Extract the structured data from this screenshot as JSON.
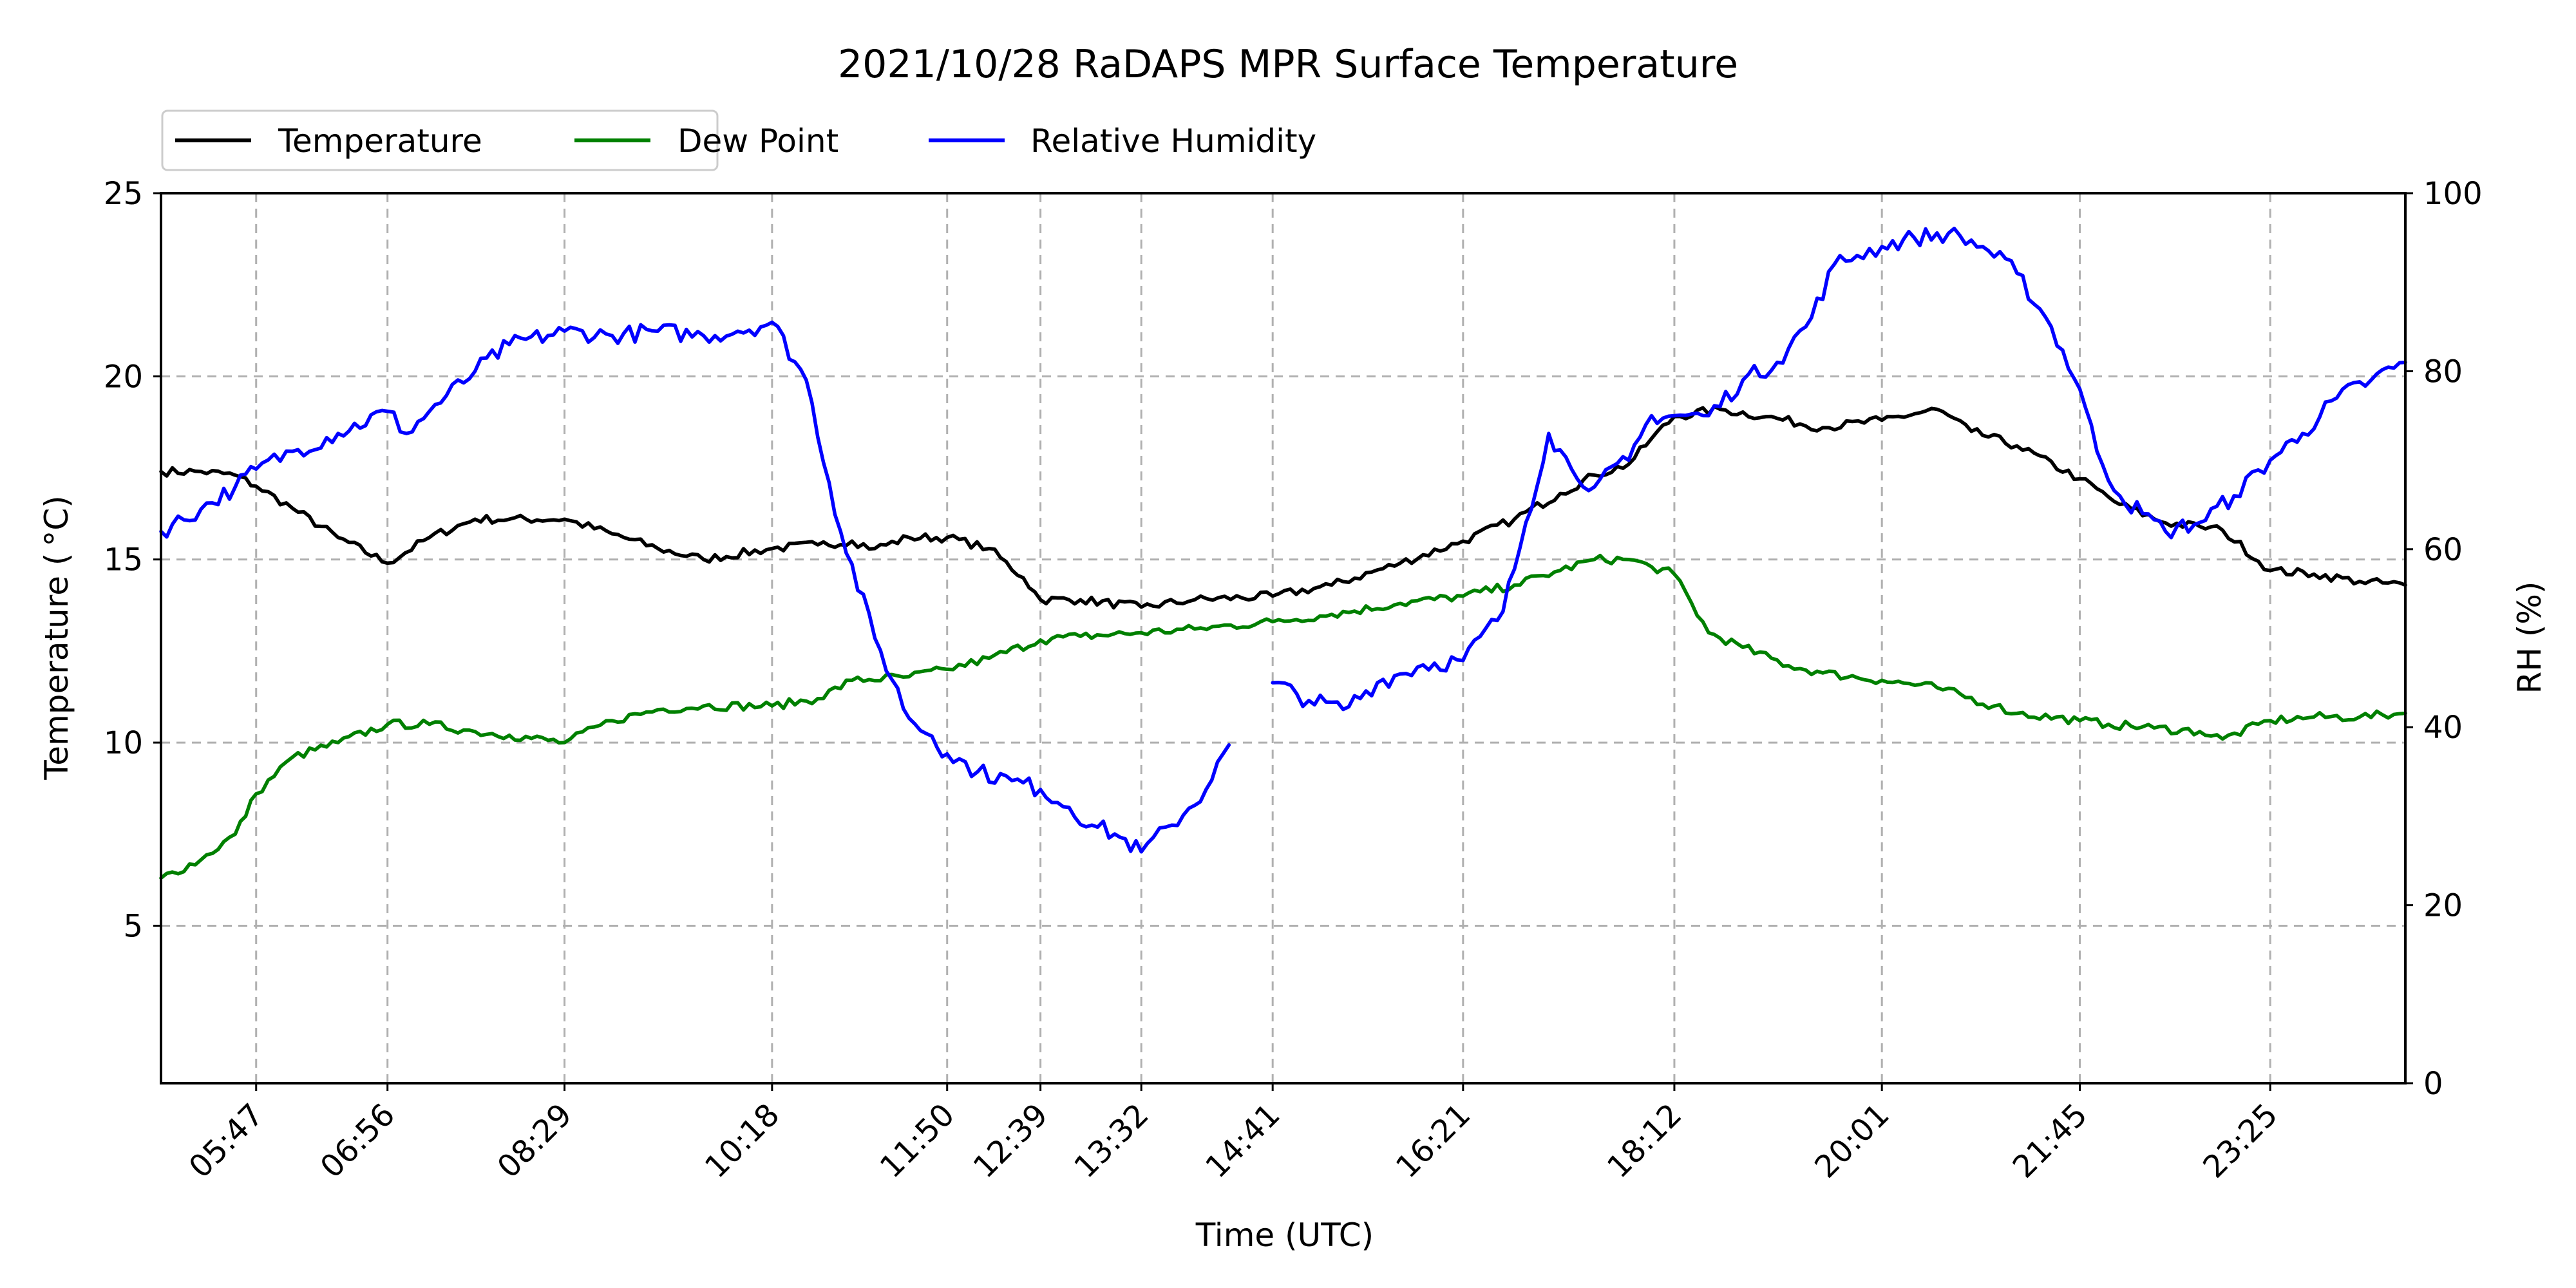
{
  "chart_data": {
    "type": "line",
    "title": "2021/10/28 RaDAPS MPR Surface Temperature",
    "xlabel": "Time (UTC)",
    "ylabel_left": "Temperature ($^\\circ$C)",
    "ylabel_left_display": "Temperature ( °C)",
    "ylabel_right": "RH (%)",
    "x_ticks": [
      "05:47",
      "06:56",
      "08:29",
      "10:18",
      "11:50",
      "12:39",
      "13:32",
      "14:41",
      "16:21",
      "18:12",
      "20:01",
      "21:45",
      "23:25"
    ],
    "x_tick_hours": [
      5.783,
      6.933,
      8.483,
      10.3,
      11.833,
      12.65,
      13.533,
      14.683,
      16.35,
      18.2,
      20.017,
      21.75,
      23.417
    ],
    "xlim_hours": [
      4.95,
      24.6
    ],
    "ylim_left": [
      0.7,
      25
    ],
    "y_ticks_left": [
      5,
      10,
      15,
      20,
      25
    ],
    "ylim_right": [
      0,
      100
    ],
    "y_ticks_right": [
      0,
      20,
      40,
      60,
      80,
      100
    ],
    "grid": true,
    "legend_position": "top-left, above axes",
    "series": [
      {
        "name": "Temperature",
        "axis": "left",
        "color": "#000000",
        "x_hours": [
          4.95,
          5.3,
          5.6,
          5.783,
          6.1,
          6.5,
          6.933,
          7.3,
          7.7,
          8.0,
          8.483,
          8.9,
          9.3,
          9.7,
          10.3,
          10.7,
          11.0,
          11.2,
          11.5,
          11.833,
          12.2,
          12.5,
          12.65,
          13.0,
          13.533,
          14.0,
          14.683,
          15.2,
          15.8,
          16.35,
          16.8,
          17.2,
          17.5,
          17.8,
          18.0,
          18.2,
          18.6,
          19.0,
          19.5,
          20.017,
          20.5,
          20.8,
          21.2,
          21.75,
          22.1,
          22.5,
          22.8,
          23.0,
          23.417,
          23.8,
          24.2,
          24.6
        ],
        "values": [
          17.4,
          17.4,
          17.3,
          17.0,
          16.4,
          15.6,
          14.9,
          15.6,
          16.1,
          16.1,
          16.1,
          15.7,
          15.3,
          15.0,
          15.3,
          15.4,
          15.5,
          15.3,
          15.6,
          15.6,
          15.3,
          14.5,
          13.9,
          13.9,
          13.7,
          13.9,
          14.0,
          14.3,
          14.9,
          15.5,
          16.1,
          16.8,
          17.3,
          17.6,
          18.3,
          18.9,
          19.1,
          18.9,
          18.6,
          18.8,
          19.1,
          18.5,
          18.1,
          17.2,
          16.5,
          16.0,
          15.9,
          15.8,
          14.7,
          14.6,
          14.4,
          14.3
        ]
      },
      {
        "name": "Dew Point",
        "axis": "left",
        "color": "#008000",
        "x_hours": [
          4.95,
          5.3,
          5.6,
          5.783,
          6.1,
          6.5,
          6.933,
          7.3,
          7.7,
          8.0,
          8.483,
          8.9,
          9.3,
          9.7,
          10.3,
          10.7,
          11.0,
          11.5,
          11.833,
          12.2,
          12.65,
          13.0,
          13.533,
          14.0,
          14.683,
          15.2,
          15.8,
          16.35,
          16.8,
          17.2,
          17.5,
          17.8,
          18.0,
          18.2,
          18.5,
          18.8,
          19.2,
          19.5,
          20.017,
          20.5,
          21.0,
          21.2,
          21.75,
          22.0,
          22.4,
          22.8,
          23.0,
          23.417,
          23.8,
          24.2,
          24.6
        ],
        "values": [
          6.3,
          6.8,
          7.5,
          8.6,
          9.6,
          10.0,
          10.5,
          10.5,
          10.3,
          10.2,
          10.0,
          10.6,
          10.9,
          11.0,
          11.0,
          11.2,
          11.7,
          11.8,
          12.0,
          12.3,
          12.8,
          12.9,
          13.0,
          13.1,
          13.3,
          13.5,
          13.8,
          14.0,
          14.3,
          14.7,
          15.0,
          15.0,
          14.8,
          14.6,
          13.0,
          12.6,
          12.1,
          11.9,
          11.7,
          11.5,
          11.0,
          10.8,
          10.6,
          10.5,
          10.4,
          10.3,
          10.1,
          10.6,
          10.7,
          10.7,
          10.8
        ]
      },
      {
        "name": "Relative Humidity",
        "axis": "right",
        "color": "#0000ff",
        "x_hours": [
          4.95,
          5.3,
          5.6,
          5.783,
          6.1,
          6.5,
          6.933,
          7.1,
          7.3,
          7.7,
          8.0,
          8.483,
          8.9,
          9.3,
          9.7,
          10.0,
          10.3,
          10.6,
          10.9,
          11.2,
          11.5,
          11.7,
          11.833,
          12.1,
          12.4,
          12.65,
          12.9,
          13.1,
          13.3,
          13.533,
          13.8,
          14.1,
          14.3,
          14.5,
          14.683,
          15.0,
          15.3,
          15.6,
          16.0,
          16.35,
          16.7,
          16.9,
          17.1,
          17.3,
          17.5,
          17.8,
          18.0,
          18.2,
          18.5,
          18.8,
          19.1,
          19.4,
          19.6,
          19.8,
          20.017,
          20.3,
          20.6,
          20.9,
          21.2,
          21.5,
          21.75,
          21.9,
          22.1,
          22.3,
          22.5,
          22.8,
          23.1,
          23.417,
          23.7,
          24.0,
          24.3,
          24.6
        ],
        "values": [
          62,
          64.5,
          67,
          69,
          71,
          73,
          75.5,
          73,
          75.5,
          80,
          83,
          84.5,
          84,
          84.5,
          84,
          84.5,
          85.5,
          79,
          62,
          50,
          41,
          39,
          37,
          35,
          34,
          33,
          31,
          29,
          28,
          26,
          29,
          33,
          38,
          null,
          45,
          43,
          42,
          45,
          47,
          47.5,
          53,
          63,
          73,
          69,
          67,
          70,
          75,
          75,
          75,
          79,
          81,
          86,
          92,
          93,
          94,
          95,
          95.5,
          94,
          91,
          85,
          78,
          71,
          66,
          64,
          62,
          63,
          66,
          70,
          73,
          77,
          79,
          81
        ]
      }
    ]
  }
}
